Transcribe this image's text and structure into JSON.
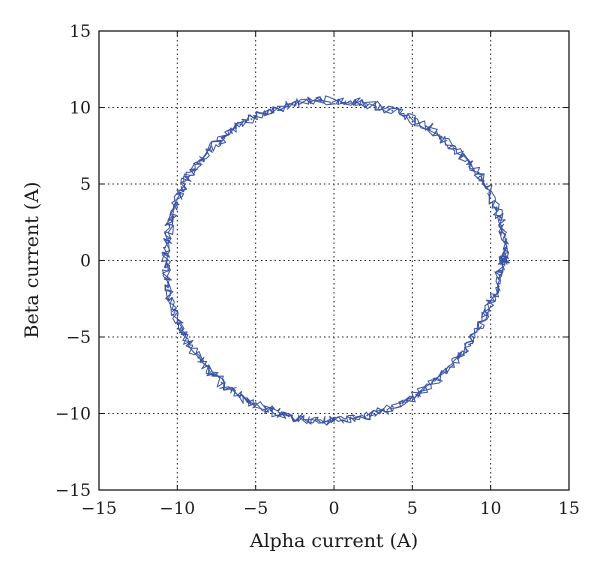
{
  "chart_data": {
    "type": "line",
    "title": "",
    "xlabel": "Alpha current (A)",
    "ylabel": "Beta current (A)",
    "xlim": [
      -15,
      15
    ],
    "ylim": [
      -15,
      15
    ],
    "xticks": [
      -15,
      -10,
      -5,
      0,
      5,
      10,
      15
    ],
    "yticks": [
      -15,
      -10,
      -5,
      0,
      5,
      10,
      15
    ],
    "xtick_labels": [
      "−15",
      "−10",
      "−5",
      "0",
      "5",
      "10",
      "15"
    ],
    "ytick_labels": [
      "−15",
      "−10",
      "−5",
      "0",
      "5",
      "10",
      "15"
    ],
    "grid": true,
    "grid_style": "dotted",
    "legend": "none",
    "series": [
      {
        "color": "#3a53a4",
        "x": [
          11.0,
          10.93,
          10.72,
          10.38,
          9.91,
          9.31,
          8.59,
          7.78,
          6.86,
          5.87,
          4.82,
          3.72,
          2.58,
          1.43,
          0.27,
          -0.88,
          -2.03,
          -3.15,
          -4.24,
          -5.27,
          -6.24,
          -7.14,
          -7.96,
          -8.68,
          -9.3,
          -9.81,
          -10.21,
          -10.5,
          -10.67,
          -10.72,
          -10.65,
          -10.47,
          -10.18,
          -9.78,
          -9.27,
          -8.66,
          -7.96,
          -7.17,
          -6.3,
          -5.37,
          -4.38,
          -3.35,
          -2.28,
          -1.19,
          -0.09,
          1.02,
          2.12,
          3.2,
          4.25,
          5.25,
          6.2,
          7.09,
          7.9,
          8.62,
          9.25,
          9.77,
          10.19,
          10.5,
          10.71,
          10.82,
          11.0
        ],
        "y": [
          0.0,
          1.15,
          2.29,
          3.4,
          4.47,
          5.49,
          6.44,
          7.31,
          8.09,
          8.77,
          9.34,
          9.79,
          10.13,
          10.36,
          10.47,
          10.46,
          10.33,
          10.08,
          9.72,
          9.24,
          8.66,
          7.98,
          7.21,
          6.35,
          5.42,
          4.42,
          3.37,
          2.28,
          1.15,
          0.0,
          -1.15,
          -2.28,
          -3.37,
          -4.42,
          -5.42,
          -6.35,
          -7.21,
          -7.98,
          -8.66,
          -9.24,
          -9.72,
          -10.08,
          -10.33,
          -10.46,
          -10.47,
          -10.36,
          -10.13,
          -9.79,
          -9.34,
          -8.77,
          -8.09,
          -7.31,
          -6.44,
          -5.49,
          -4.47,
          -3.4,
          -2.29,
          -1.15,
          0.0,
          0.0,
          0.0
        ]
      }
    ]
  }
}
